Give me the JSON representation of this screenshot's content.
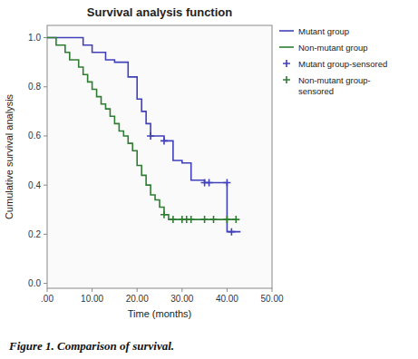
{
  "chart_data": {
    "type": "step",
    "title": "Survival analysis function",
    "x_label": "Time (months)",
    "y_label": "Cumulative survival analysis",
    "caption": "Figure 1. Comparison of survival.",
    "xlim": [
      0,
      50
    ],
    "ylim": [
      -0.02,
      1.05
    ],
    "xticks": [
      {
        "value": 0,
        "label": ".00"
      },
      {
        "value": 10,
        "label": "10.00"
      },
      {
        "value": 20,
        "label": "20.00"
      },
      {
        "value": 30,
        "label": "30.00"
      },
      {
        "value": 40,
        "label": "40.00"
      },
      {
        "value": 50,
        "label": "50.00"
      }
    ],
    "yticks": [
      {
        "value": 0,
        "label": "0.0"
      },
      0.2,
      0.4,
      0.6,
      0.8,
      {
        "value": 1,
        "label": "1.0"
      }
    ],
    "grid": false,
    "legend": "right",
    "series": [
      {
        "name": "Mutant group",
        "type": "step",
        "color": "#4040bb",
        "x": [
          0,
          8,
          8,
          10,
          10,
          13,
          13,
          15,
          15,
          18,
          18,
          20,
          20,
          21,
          21,
          22,
          22,
          23,
          23,
          26,
          26,
          28,
          28,
          30,
          30,
          32,
          32,
          35,
          35,
          36,
          36,
          40,
          40,
          41,
          41,
          42,
          42,
          43
        ],
        "values": [
          1.0,
          1.0,
          0.97,
          0.97,
          0.94,
          0.94,
          0.91,
          0.91,
          0.9,
          0.9,
          0.84,
          0.84,
          0.75,
          0.75,
          0.7,
          0.7,
          0.65,
          0.65,
          0.6,
          0.6,
          0.58,
          0.58,
          0.5,
          0.5,
          0.49,
          0.49,
          0.42,
          0.42,
          0.41,
          0.41,
          0.41,
          0.41,
          0.21,
          0.21,
          0.21,
          0.21,
          0.21,
          0.21
        ]
      },
      {
        "name": "Non-mutant group",
        "type": "step",
        "color": "#2e7d32",
        "x": [
          0,
          2,
          2,
          4,
          4,
          5,
          5,
          7,
          7,
          8,
          8,
          9,
          9,
          10,
          10,
          11,
          11,
          12,
          12,
          13,
          13,
          14,
          14,
          15,
          15,
          16,
          16,
          17,
          17,
          18,
          18,
          19,
          19,
          20,
          20,
          21,
          21,
          22,
          22,
          23,
          23,
          24,
          24,
          25,
          25,
          26,
          26,
          27,
          27,
          28,
          28,
          29,
          29,
          30,
          30,
          31,
          31,
          32,
          32,
          35,
          35,
          37,
          37,
          40,
          40,
          42
        ],
        "values": [
          1.0,
          1.0,
          0.97,
          0.97,
          0.94,
          0.94,
          0.91,
          0.91,
          0.88,
          0.88,
          0.85,
          0.85,
          0.82,
          0.82,
          0.79,
          0.79,
          0.76,
          0.76,
          0.73,
          0.73,
          0.71,
          0.71,
          0.68,
          0.68,
          0.65,
          0.65,
          0.62,
          0.62,
          0.6,
          0.6,
          0.57,
          0.57,
          0.54,
          0.54,
          0.48,
          0.48,
          0.44,
          0.44,
          0.4,
          0.4,
          0.36,
          0.36,
          0.34,
          0.34,
          0.31,
          0.31,
          0.28,
          0.28,
          0.26,
          0.26,
          0.26,
          0.26,
          0.26,
          0.26,
          0.26,
          0.26,
          0.26,
          0.26,
          0.26,
          0.26,
          0.26,
          0.26,
          0.26,
          0.26,
          0.26,
          0.26
        ]
      },
      {
        "name": "Mutant group-sensored",
        "type": "scatter",
        "marker": "plus",
        "color": "#4040bb",
        "x": [
          23,
          26,
          35,
          36,
          40,
          41
        ],
        "values": [
          0.6,
          0.58,
          0.41,
          0.41,
          0.41,
          0.21
        ]
      },
      {
        "name": "Non-mutant group-\nsensored",
        "type": "scatter",
        "marker": "plus",
        "color": "#2e7d32",
        "x": [
          26,
          28,
          30,
          31,
          32,
          35,
          37,
          40,
          42
        ],
        "values": [
          0.28,
          0.26,
          0.26,
          0.26,
          0.26,
          0.26,
          0.26,
          0.26,
          0.26
        ]
      }
    ]
  }
}
